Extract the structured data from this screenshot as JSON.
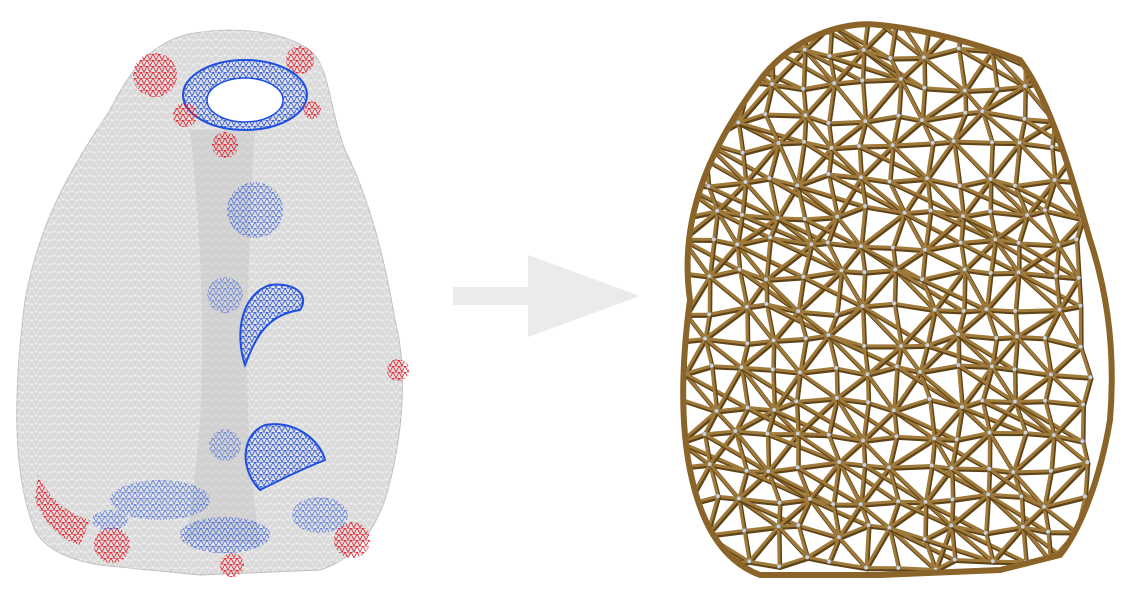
{
  "figure": {
    "panels": [
      {
        "id": "input-mesh",
        "surface_color": "#d9d9d9",
        "wire_color": "#ffffff",
        "highlight_colors": {
          "high": "#e8121f",
          "low": "#1f4fe0"
        }
      },
      {
        "id": "output-lattice",
        "strut_color": "#a07a3a",
        "strut_shadow": "#5e4318",
        "node_color": "#cfd3d6"
      }
    ],
    "arrow": {
      "color": "#ebebeb",
      "direction": "right"
    }
  }
}
